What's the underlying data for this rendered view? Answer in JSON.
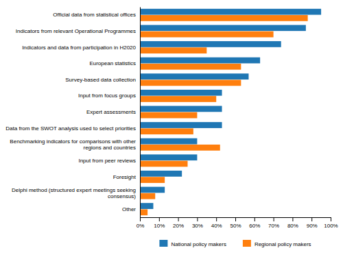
{
  "chart_data": {
    "type": "bar",
    "orientation": "horizontal",
    "categories": [
      "Official data from statistical offices",
      "Indicators from relevant Operational Programmes",
      "Indicators and data from participation in H2020",
      "European statistics",
      "Survey-based data collection",
      "Input from focus groups",
      "Expert assessments",
      "Data from the SWOT analysis used to select priorities",
      "Benchmarking indicators for comparisons with other\nregions and countries",
      "Input from peer reviews",
      "Foresight",
      "Delphi method (structured expert meetings seeking\nconsensus)",
      "Other"
    ],
    "series": [
      {
        "name": "National policy makers",
        "values": [
          95,
          87,
          74,
          63,
          57,
          43,
          43,
          43,
          30,
          30,
          22,
          13,
          7
        ]
      },
      {
        "name": "Regional policy makers",
        "values": [
          88,
          70,
          35,
          53,
          53,
          40,
          30,
          28,
          42,
          25,
          13,
          8,
          4
        ]
      }
    ],
    "xlim": [
      0,
      100
    ],
    "xticks": [
      {
        "value": 0,
        "label": "0%"
      },
      {
        "value": 10,
        "label": "10%"
      },
      {
        "value": 20,
        "label": "20%"
      },
      {
        "value": 30,
        "label": "30%"
      },
      {
        "value": 40,
        "label": "40%"
      },
      {
        "value": 50,
        "label": "50%"
      },
      {
        "value": 60,
        "label": "60%"
      },
      {
        "value": 70,
        "label": "70%"
      },
      {
        "value": 80,
        "label": "80%"
      },
      {
        "value": 90,
        "label": "90%"
      },
      {
        "value": 100,
        "label": "100%"
      }
    ],
    "grid": false,
    "legend": "bottom"
  }
}
